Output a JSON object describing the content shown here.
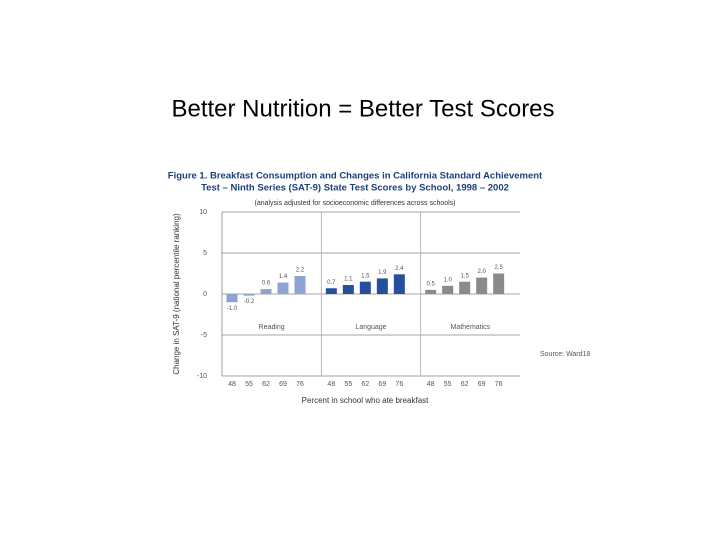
{
  "slide_title": "Better Nutrition = Better Test Scores",
  "chart_data": {
    "type": "bar",
    "title": [
      "Figure 1. Breakfast Consumption and Changes in California Standard Achievement",
      "Test – Ninth Series (SAT-9) State Test Scores by School, 1998 – 2002"
    ],
    "subtitle": "(analysis adjusted for socioeconomic differences across schools)",
    "y_label": "Change in SAT-9 (national percentile ranking)",
    "x_label": "Percent in school who ate breakfast",
    "source": "Source: Ward18",
    "ylim": [
      -10,
      10
    ],
    "yticks": [
      10,
      5,
      0,
      -5,
      -10
    ],
    "grid": true,
    "groups": [
      {
        "name": "Reading",
        "color": "#8ea3d4",
        "categories": [
          "48",
          "55",
          "62",
          "69",
          "76"
        ],
        "values": [
          -1.0,
          -0.2,
          0.6,
          1.4,
          2.2
        ],
        "value_labels": [
          "-1.0",
          "-0.2",
          "0.6",
          "1.4",
          "2.2"
        ]
      },
      {
        "name": "Language",
        "color": "#24509c",
        "categories": [
          "48",
          "55",
          "62",
          "69",
          "76"
        ],
        "values": [
          0.7,
          1.1,
          1.5,
          1.9,
          2.4
        ],
        "value_labels": [
          "0.7",
          "1.1",
          "1.5",
          "1.9",
          "2.4"
        ]
      },
      {
        "name": "Mathematics",
        "color": "#8a8a8a",
        "categories": [
          "48",
          "55",
          "62",
          "69",
          "76"
        ],
        "values": [
          0.5,
          1.0,
          1.5,
          2.0,
          2.5
        ],
        "value_labels": [
          "0.5",
          "1.0",
          "1.5",
          "2.0",
          "2.5"
        ]
      }
    ]
  }
}
